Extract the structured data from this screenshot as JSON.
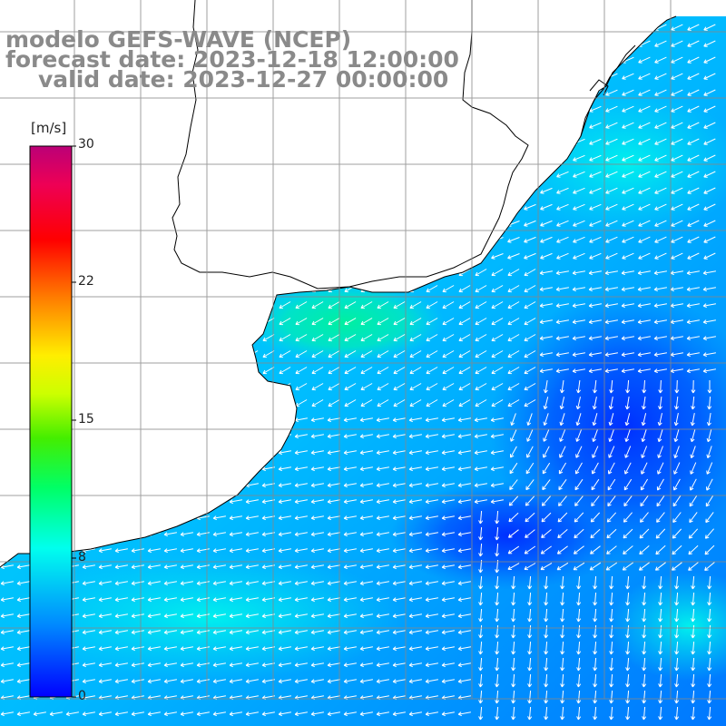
{
  "title": {
    "model": "modelo GEFS-WAVE (NCEP)",
    "forecast": "forecast date: 2023-12-18 12:00:00",
    "valid": "valid date: 2023-12-27 00:00:00"
  },
  "colorbar": {
    "unit": "[m/s]",
    "ticks": [
      {
        "value": 30,
        "label": "30"
      },
      {
        "value": 22,
        "label": "22"
      },
      {
        "value": 15,
        "label": "15"
      },
      {
        "value": 8,
        "label": "8"
      },
      {
        "value": 0,
        "label": "0"
      }
    ],
    "min": 0,
    "max": 30,
    "colors": [
      "#0000ff",
      "#0088ff",
      "#00ddff",
      "#00ffaa",
      "#00dd00",
      "#aaff00",
      "#ffff00",
      "#ff8800",
      "#ff0000",
      "#dd0066",
      "#bb0077"
    ]
  },
  "map": {
    "variable": "wind speed and direction",
    "colors": {
      "land": "#ffffff",
      "coast": "#000000",
      "grid": "#888888",
      "arrows": "#ffffff"
    }
  }
}
